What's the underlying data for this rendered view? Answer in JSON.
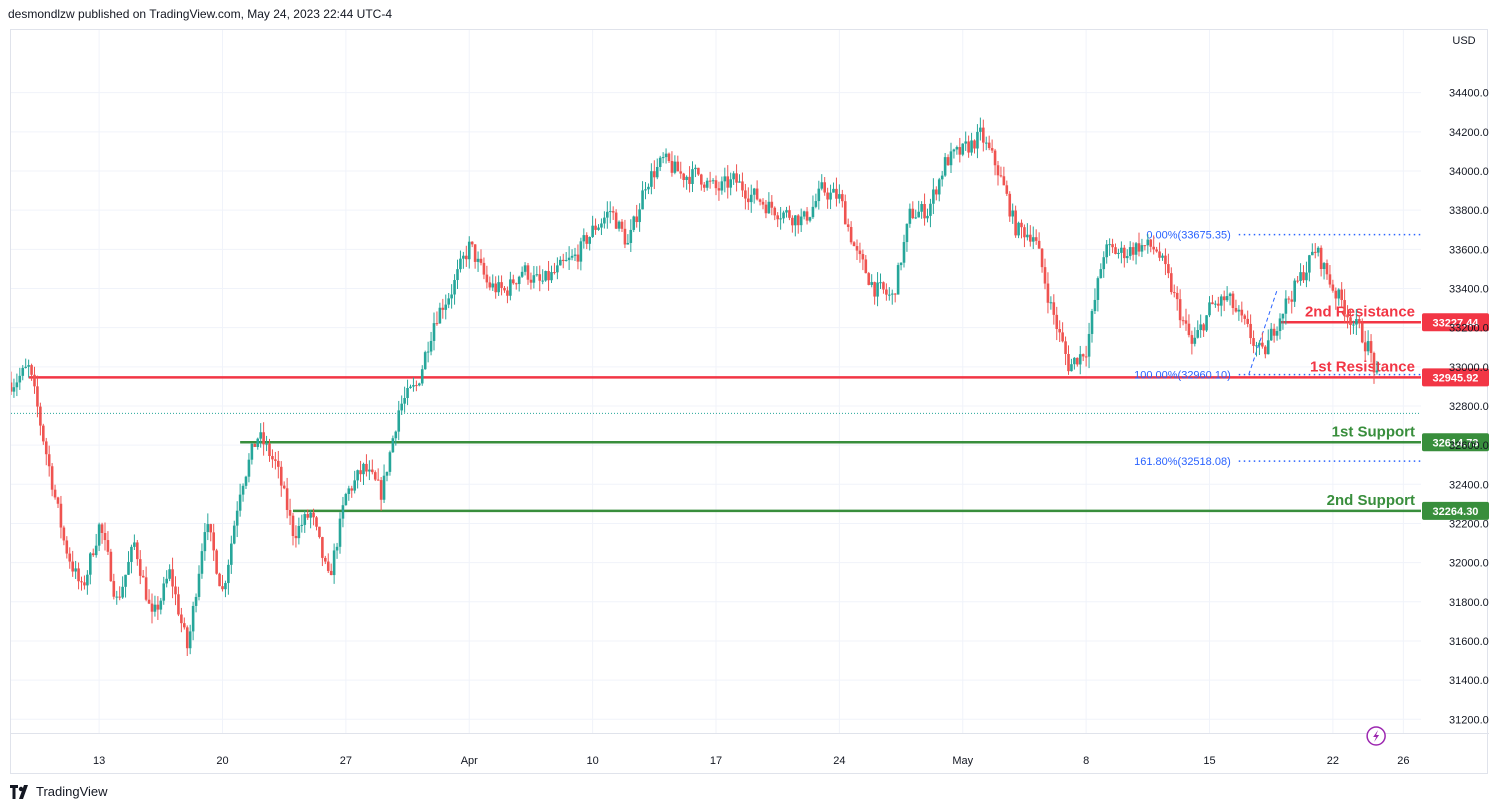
{
  "header": {
    "publisher_text": "desmondlzw published on TradingView.com, May 24, 2023 22:44 UTC-4"
  },
  "footer": {
    "brand": "TradingView"
  },
  "colors": {
    "up": "#26a69a",
    "down": "#ef5350",
    "resistance": "#f23645",
    "support": "#388e3c",
    "fib": "#2962ff",
    "grid": "#f0f3fa",
    "axis_text": "#131722"
  },
  "chart_data": {
    "type": "candlestick",
    "currency": "USD",
    "y_axis": {
      "ticks": [
        31200,
        31400,
        31600,
        31800,
        32000,
        32200,
        32400,
        32600,
        32800,
        33000,
        33200,
        33400,
        33600,
        33800,
        34000,
        34200,
        34400
      ],
      "tick_labels": [
        "31200.00",
        "31400.00",
        "31600.00",
        "31800.00",
        "32000.00",
        "32200.00",
        "32400.00",
        "32600.00",
        "32800.00",
        "33000.00",
        "33200.00",
        "33400.00",
        "33600.00",
        "33800.00",
        "34000.00",
        "34200.00",
        "34400.00"
      ],
      "range": [
        31130,
        34720
      ]
    },
    "x_axis": {
      "range": [
        "2023-03-08",
        "2023-05-27"
      ],
      "tick_dates": [
        "2023-03-13",
        "2023-03-20",
        "2023-03-27",
        "2023-04-03",
        "2023-04-10",
        "2023-04-17",
        "2023-04-24",
        "2023-05-01",
        "2023-05-08",
        "2023-05-15",
        "2023-05-22",
        "2023-05-26"
      ],
      "tick_labels": [
        "13",
        "20",
        "27",
        "Apr",
        "10",
        "17",
        "24",
        "May",
        "8",
        "15",
        "22",
        "26"
      ]
    },
    "horizontal_levels": [
      {
        "name": "1st Resistance",
        "value": 32945.92,
        "label": "32945.92",
        "kind": "resistance",
        "start": "2023-03-09"
      },
      {
        "name": "2nd Resistance",
        "value": 33227.44,
        "label": "33227.44",
        "kind": "resistance",
        "start": "2023-05-19"
      },
      {
        "name": "1st Support",
        "value": 32614.73,
        "label": "32614.73",
        "kind": "support",
        "start": "2023-03-21"
      },
      {
        "name": "2nd Support",
        "value": 32264.3,
        "label": "32264.30",
        "kind": "support",
        "start": "2023-03-24"
      }
    ],
    "fib_levels": [
      {
        "label": "0.00%(33675.35)",
        "value": 33675.35
      },
      {
        "label": "100.00%(32960.10)",
        "value": 32960.1
      },
      {
        "label": "161.80%(32518.08)",
        "value": 32518.08
      }
    ],
    "last_price": 32762,
    "keypoints": [
      [
        "2023-03-08",
        32920
      ],
      [
        "2023-03-09",
        32990
      ],
      [
        "2023-03-10",
        32550
      ],
      [
        "2023-03-11",
        32100
      ],
      [
        "2023-03-12",
        31850
      ],
      [
        "2023-03-13",
        32200
      ],
      [
        "2023-03-14",
        31800
      ],
      [
        "2023-03-15",
        32100
      ],
      [
        "2023-03-16",
        31700
      ],
      [
        "2023-03-17",
        31950
      ],
      [
        "2023-03-18",
        31550
      ],
      [
        "2023-03-19",
        32220
      ],
      [
        "2023-03-20",
        31850
      ],
      [
        "2023-03-21",
        32400
      ],
      [
        "2023-03-22",
        32650
      ],
      [
        "2023-03-23",
        32500
      ],
      [
        "2023-03-24",
        32150
      ],
      [
        "2023-03-25",
        32250
      ],
      [
        "2023-03-26",
        31900
      ],
      [
        "2023-03-27",
        32350
      ],
      [
        "2023-03-28",
        32480
      ],
      [
        "2023-03-29",
        32350
      ],
      [
        "2023-03-30",
        32800
      ],
      [
        "2023-03-31",
        32900
      ],
      [
        "2023-04-01",
        33250
      ],
      [
        "2023-04-02",
        33400
      ],
      [
        "2023-04-03",
        33620
      ],
      [
        "2023-04-04",
        33420
      ],
      [
        "2023-04-05",
        33380
      ],
      [
        "2023-04-06",
        33500
      ],
      [
        "2023-04-07",
        33420
      ],
      [
        "2023-04-08",
        33490
      ],
      [
        "2023-04-09",
        33560
      ],
      [
        "2023-04-10",
        33700
      ],
      [
        "2023-04-11",
        33800
      ],
      [
        "2023-04-12",
        33620
      ],
      [
        "2023-04-13",
        33950
      ],
      [
        "2023-04-14",
        34050
      ],
      [
        "2023-04-15",
        33980
      ],
      [
        "2023-04-16",
        33980
      ],
      [
        "2023-04-17",
        33900
      ],
      [
        "2023-04-18",
        33950
      ],
      [
        "2023-04-19",
        33880
      ],
      [
        "2023-04-20",
        33820
      ],
      [
        "2023-04-21",
        33780
      ],
      [
        "2023-04-22",
        33750
      ],
      [
        "2023-04-23",
        33900
      ],
      [
        "2023-04-24",
        33860
      ],
      [
        "2023-04-25",
        33560
      ],
      [
        "2023-04-26",
        33400
      ],
      [
        "2023-04-27",
        33350
      ],
      [
        "2023-04-28",
        33780
      ],
      [
        "2023-04-29",
        33800
      ],
      [
        "2023-04-30",
        34050
      ],
      [
        "2023-05-01",
        34100
      ],
      [
        "2023-05-02",
        34180
      ],
      [
        "2023-05-03",
        34000
      ],
      [
        "2023-05-04",
        33700
      ],
      [
        "2023-05-05",
        33680
      ],
      [
        "2023-05-06",
        33300
      ],
      [
        "2023-05-07",
        33000
      ],
      [
        "2023-05-08",
        33100
      ],
      [
        "2023-05-09",
        33600
      ],
      [
        "2023-05-10",
        33580
      ],
      [
        "2023-05-11",
        33620
      ],
      [
        "2023-05-12",
        33600
      ],
      [
        "2023-05-13",
        33350
      ],
      [
        "2023-05-14",
        33100
      ],
      [
        "2023-05-15",
        33300
      ],
      [
        "2023-05-16",
        33350
      ],
      [
        "2023-05-17",
        33200
      ],
      [
        "2023-05-18",
        33050
      ],
      [
        "2023-05-19",
        33280
      ],
      [
        "2023-05-20",
        33430
      ],
      [
        "2023-05-21",
        33600
      ],
      [
        "2023-05-22",
        33400
      ],
      [
        "2023-05-23",
        33250
      ],
      [
        "2023-05-24",
        33100
      ],
      [
        "2023-05-25",
        32760
      ]
    ]
  }
}
